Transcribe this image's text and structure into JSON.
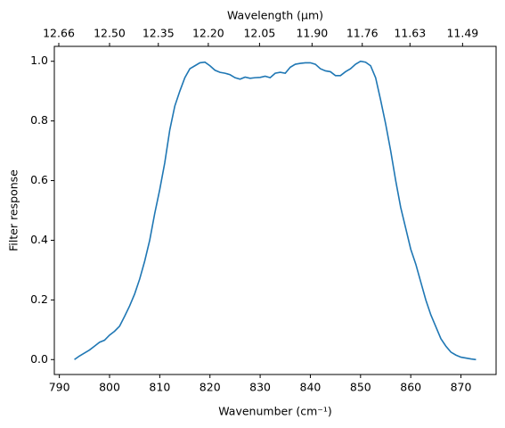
{
  "chart_data": {
    "type": "line",
    "xlabel": "Wavenumber (cm⁻¹)",
    "ylabel": "Filter response",
    "x2label": "Wavelength (μm)",
    "x": [
      793,
      794,
      795,
      796,
      797,
      798,
      799,
      800,
      801,
      802,
      803,
      804,
      805,
      806,
      807,
      808,
      809,
      810,
      811,
      812,
      813,
      814,
      815,
      816,
      817,
      818,
      819,
      820,
      821,
      822,
      823,
      824,
      825,
      826,
      827,
      828,
      829,
      830,
      831,
      832,
      833,
      834,
      835,
      836,
      837,
      838,
      839,
      840,
      841,
      842,
      843,
      844,
      845,
      846,
      847,
      848,
      849,
      850,
      851,
      852,
      853,
      854,
      855,
      856,
      857,
      858,
      859,
      860,
      861,
      862,
      863,
      864,
      865,
      866,
      867,
      868,
      869,
      870,
      871,
      872,
      873
    ],
    "series": [
      {
        "color": "#1f77b4",
        "values": [
          0.0,
          0.012,
          0.022,
          0.032,
          0.045,
          0.058,
          0.065,
          0.082,
          0.095,
          0.112,
          0.145,
          0.18,
          0.22,
          0.27,
          0.33,
          0.4,
          0.49,
          0.57,
          0.66,
          0.77,
          0.85,
          0.9,
          0.945,
          0.975,
          0.985,
          0.995,
          0.997,
          0.985,
          0.97,
          0.963,
          0.96,
          0.955,
          0.945,
          0.94,
          0.947,
          0.943,
          0.945,
          0.946,
          0.95,
          0.945,
          0.96,
          0.963,
          0.96,
          0.98,
          0.99,
          0.993,
          0.995,
          0.995,
          0.99,
          0.975,
          0.968,
          0.965,
          0.952,
          0.952,
          0.965,
          0.975,
          0.99,
          1.0,
          0.997,
          0.985,
          0.945,
          0.87,
          0.79,
          0.7,
          0.6,
          0.51,
          0.44,
          0.37,
          0.32,
          0.26,
          0.2,
          0.15,
          0.11,
          0.07,
          0.045,
          0.025,
          0.015,
          0.008,
          0.005,
          0.002,
          0.0
        ]
      }
    ],
    "xlim": [
      789,
      877
    ],
    "ylim": [
      -0.05,
      1.05
    ],
    "xticks": [
      790,
      800,
      810,
      820,
      830,
      840,
      850,
      860,
      870
    ],
    "yticks": [
      {
        "value": 0,
        "label": "0.0"
      },
      {
        "value": 0.2,
        "label": "0.2"
      },
      {
        "value": 0.4,
        "label": "0.4"
      },
      {
        "value": 0.6,
        "label": "0.6"
      },
      {
        "value": 0.8,
        "label": "0.8"
      },
      {
        "value": 1,
        "label": "1.0"
      }
    ],
    "x2ticks": [
      12.66,
      {
        "value": 12.5,
        "label": "12.50"
      },
      12.35,
      {
        "value": 12.2,
        "label": "12.20"
      },
      12.05,
      {
        "value": 11.9,
        "label": "11.90"
      },
      11.76,
      11.63,
      11.49
    ]
  }
}
